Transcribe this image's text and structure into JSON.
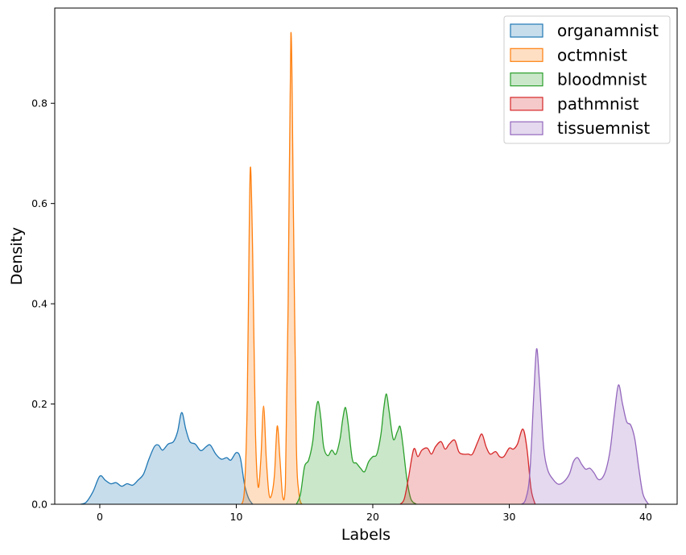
{
  "chart_data": {
    "type": "area",
    "title": "",
    "xlabel": "Labels",
    "ylabel": "Density",
    "xlim": [
      -3.3,
      42.3
    ],
    "ylim": [
      0,
      0.99
    ],
    "x_ticks": [
      0,
      10,
      20,
      30,
      40
    ],
    "y_ticks": [
      0.0,
      0.2,
      0.4,
      0.6,
      0.8
    ],
    "x_tick_labels": [
      "0",
      "10",
      "20",
      "30",
      "40"
    ],
    "y_tick_labels": [
      "0.0",
      "0.2",
      "0.4",
      "0.6",
      "0.8"
    ],
    "grid": false,
    "legend_position": "top-right",
    "series": [
      {
        "name": "organamnist",
        "color": "#1f77b4",
        "points": [
          [
            -1.4,
            0.0
          ],
          [
            -1.0,
            0.004
          ],
          [
            -0.5,
            0.025
          ],
          [
            0.0,
            0.056
          ],
          [
            0.4,
            0.048
          ],
          [
            0.8,
            0.041
          ],
          [
            1.2,
            0.043
          ],
          [
            1.6,
            0.036
          ],
          [
            2.0,
            0.041
          ],
          [
            2.4,
            0.038
          ],
          [
            2.8,
            0.048
          ],
          [
            3.2,
            0.06
          ],
          [
            3.6,
            0.09
          ],
          [
            4.0,
            0.115
          ],
          [
            4.3,
            0.118
          ],
          [
            4.6,
            0.108
          ],
          [
            5.0,
            0.12
          ],
          [
            5.4,
            0.125
          ],
          [
            5.7,
            0.145
          ],
          [
            6.0,
            0.183
          ],
          [
            6.3,
            0.15
          ],
          [
            6.6,
            0.125
          ],
          [
            7.0,
            0.12
          ],
          [
            7.4,
            0.107
          ],
          [
            7.8,
            0.115
          ],
          [
            8.1,
            0.118
          ],
          [
            8.5,
            0.1
          ],
          [
            8.9,
            0.09
          ],
          [
            9.3,
            0.093
          ],
          [
            9.6,
            0.088
          ],
          [
            10.0,
            0.103
          ],
          [
            10.3,
            0.092
          ],
          [
            10.6,
            0.04
          ],
          [
            10.9,
            0.012
          ],
          [
            11.2,
            0.0
          ]
        ]
      },
      {
        "name": "octmnist",
        "color": "#ff7f0e",
        "points": [
          [
            10.4,
            0.0
          ],
          [
            10.6,
            0.03
          ],
          [
            10.8,
            0.2
          ],
          [
            10.95,
            0.55
          ],
          [
            11.05,
            0.672
          ],
          [
            11.2,
            0.5
          ],
          [
            11.4,
            0.15
          ],
          [
            11.6,
            0.035
          ],
          [
            11.8,
            0.09
          ],
          [
            12.0,
            0.196
          ],
          [
            12.2,
            0.09
          ],
          [
            12.4,
            0.02
          ],
          [
            12.6,
            0.02
          ],
          [
            12.8,
            0.06
          ],
          [
            13.0,
            0.156
          ],
          [
            13.2,
            0.09
          ],
          [
            13.4,
            0.015
          ],
          [
            13.6,
            0.04
          ],
          [
            13.8,
            0.4
          ],
          [
            14.0,
            0.94
          ],
          [
            14.2,
            0.55
          ],
          [
            14.4,
            0.12
          ],
          [
            14.6,
            0.02
          ],
          [
            14.8,
            0.0
          ]
        ]
      },
      {
        "name": "bloodmnist",
        "color": "#2ca02c",
        "points": [
          [
            14.4,
            0.0
          ],
          [
            14.7,
            0.02
          ],
          [
            15.0,
            0.075
          ],
          [
            15.3,
            0.088
          ],
          [
            15.6,
            0.125
          ],
          [
            15.8,
            0.18
          ],
          [
            16.0,
            0.205
          ],
          [
            16.2,
            0.17
          ],
          [
            16.4,
            0.115
          ],
          [
            16.7,
            0.097
          ],
          [
            17.0,
            0.108
          ],
          [
            17.3,
            0.1
          ],
          [
            17.6,
            0.13
          ],
          [
            17.8,
            0.17
          ],
          [
            18.0,
            0.193
          ],
          [
            18.2,
            0.16
          ],
          [
            18.5,
            0.09
          ],
          [
            18.8,
            0.082
          ],
          [
            19.1,
            0.072
          ],
          [
            19.4,
            0.065
          ],
          [
            19.7,
            0.085
          ],
          [
            20.0,
            0.095
          ],
          [
            20.3,
            0.1
          ],
          [
            20.6,
            0.14
          ],
          [
            20.8,
            0.19
          ],
          [
            21.0,
            0.22
          ],
          [
            21.2,
            0.185
          ],
          [
            21.5,
            0.13
          ],
          [
            21.8,
            0.145
          ],
          [
            22.0,
            0.155
          ],
          [
            22.2,
            0.12
          ],
          [
            22.5,
            0.05
          ],
          [
            22.8,
            0.01
          ],
          [
            23.2,
            0.0
          ]
        ]
      },
      {
        "name": "pathmnist",
        "color": "#d62728",
        "points": [
          [
            22.0,
            0.0
          ],
          [
            22.3,
            0.01
          ],
          [
            22.6,
            0.05
          ],
          [
            23.0,
            0.11
          ],
          [
            23.3,
            0.095
          ],
          [
            23.6,
            0.108
          ],
          [
            24.0,
            0.112
          ],
          [
            24.3,
            0.1
          ],
          [
            24.6,
            0.115
          ],
          [
            25.0,
            0.125
          ],
          [
            25.3,
            0.11
          ],
          [
            25.6,
            0.12
          ],
          [
            26.0,
            0.128
          ],
          [
            26.3,
            0.105
          ],
          [
            26.6,
            0.1
          ],
          [
            27.0,
            0.1
          ],
          [
            27.3,
            0.1
          ],
          [
            27.7,
            0.125
          ],
          [
            28.0,
            0.14
          ],
          [
            28.3,
            0.115
          ],
          [
            28.6,
            0.1
          ],
          [
            29.0,
            0.105
          ],
          [
            29.3,
            0.095
          ],
          [
            29.6,
            0.095
          ],
          [
            30.0,
            0.112
          ],
          [
            30.3,
            0.11
          ],
          [
            30.6,
            0.12
          ],
          [
            31.0,
            0.15
          ],
          [
            31.3,
            0.11
          ],
          [
            31.6,
            0.03
          ],
          [
            31.9,
            0.0
          ]
        ]
      },
      {
        "name": "tissuemnist",
        "color": "#9467bd",
        "points": [
          [
            30.9,
            0.0
          ],
          [
            31.2,
            0.01
          ],
          [
            31.5,
            0.06
          ],
          [
            31.8,
            0.22
          ],
          [
            32.0,
            0.31
          ],
          [
            32.2,
            0.25
          ],
          [
            32.5,
            0.12
          ],
          [
            32.8,
            0.07
          ],
          [
            33.2,
            0.05
          ],
          [
            33.6,
            0.04
          ],
          [
            34.0,
            0.045
          ],
          [
            34.4,
            0.06
          ],
          [
            34.7,
            0.085
          ],
          [
            35.0,
            0.093
          ],
          [
            35.3,
            0.08
          ],
          [
            35.6,
            0.07
          ],
          [
            35.9,
            0.072
          ],
          [
            36.2,
            0.063
          ],
          [
            36.5,
            0.05
          ],
          [
            36.8,
            0.052
          ],
          [
            37.1,
            0.07
          ],
          [
            37.4,
            0.11
          ],
          [
            37.7,
            0.18
          ],
          [
            38.0,
            0.238
          ],
          [
            38.3,
            0.2
          ],
          [
            38.6,
            0.165
          ],
          [
            38.9,
            0.158
          ],
          [
            39.2,
            0.13
          ],
          [
            39.5,
            0.07
          ],
          [
            39.8,
            0.02
          ],
          [
            40.2,
            0.0
          ]
        ]
      }
    ]
  }
}
